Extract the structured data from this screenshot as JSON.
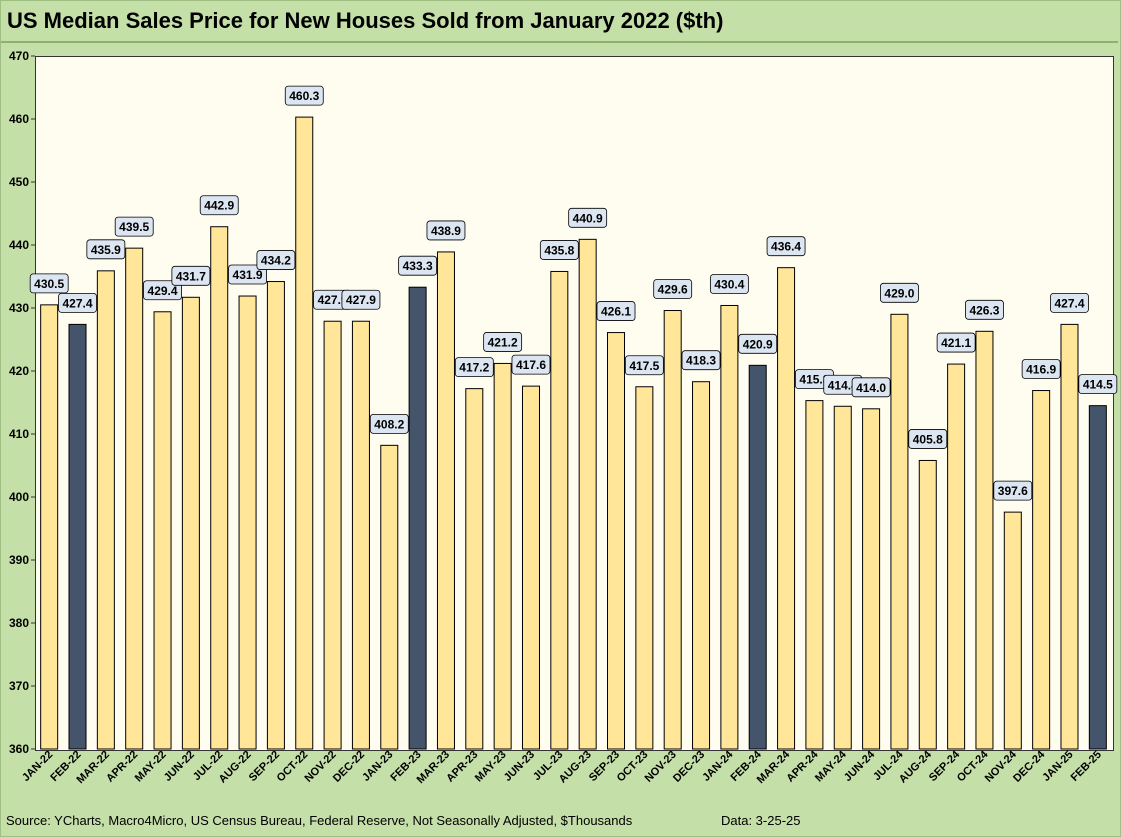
{
  "chart_data": {
    "type": "bar",
    "title": "US Median Sales Price for New Houses Sold from January 2022 ($th)",
    "categories": [
      "JAN-22",
      "FEB-22",
      "MAR-22",
      "APR-22",
      "MAY-22",
      "JUN-22",
      "JUL-22",
      "AUG-22",
      "SEP-22",
      "OCT-22",
      "NOV-22",
      "DEC-22",
      "JAN-23",
      "FEB-23",
      "MAR-23",
      "APR-23",
      "MAY-23",
      "JUN-23",
      "JUL-23",
      "AUG-23",
      "SEP-23",
      "OCT-23",
      "NOV-23",
      "DEC-23",
      "JAN-24",
      "FEB-24",
      "MAR-24",
      "APR-24",
      "MAY-24",
      "JUN-24",
      "JUL-24",
      "AUG-24",
      "SEP-24",
      "OCT-24",
      "NOV-24",
      "DEC-24",
      "JAN-25",
      "FEB-25"
    ],
    "values": [
      430.5,
      427.4,
      435.9,
      439.5,
      429.4,
      431.7,
      442.9,
      431.9,
      434.2,
      460.3,
      427.9,
      427.9,
      408.2,
      433.3,
      438.9,
      417.2,
      421.2,
      417.6,
      435.8,
      440.9,
      426.1,
      417.5,
      429.6,
      418.3,
      430.4,
      420.9,
      436.4,
      415.3,
      414.4,
      414.0,
      429.0,
      405.8,
      421.1,
      426.3,
      397.6,
      416.9,
      427.4,
      414.5
    ],
    "highlight_months": [
      "FEB-22",
      "FEB-23",
      "FEB-24",
      "FEB-25"
    ],
    "ylim": [
      360,
      470
    ],
    "yticks": [
      360,
      370,
      380,
      390,
      400,
      410,
      420,
      430,
      440,
      450,
      460,
      470
    ],
    "grid": false,
    "legend": "none",
    "colors": {
      "bar": "#ffe699",
      "highlight": "#44546a",
      "background": "#c5dfa9",
      "plot": "#fffdf0",
      "label_box": "#dce6f2"
    }
  },
  "footer": {
    "source": "Source: YCharts, Macro4Micro, US Census Bureau, Federal Reserve, Not Seasonally Adjusted, $Thousands",
    "date": "Data: 3-25-25"
  }
}
